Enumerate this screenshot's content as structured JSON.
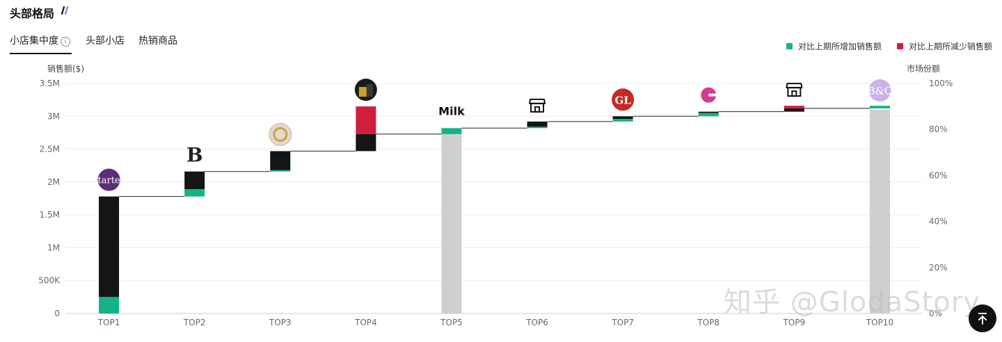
{
  "header": {
    "title": "头部格局"
  },
  "tabs": [
    {
      "label": "小店集中度",
      "active": true
    },
    {
      "label": "头部小店",
      "active": false
    },
    {
      "label": "热销商品",
      "active": false
    }
  ],
  "legend": {
    "increase": {
      "label": "对比上期所增加销售额",
      "color": "#14b386"
    },
    "decrease": {
      "label": "对比上期所减少销售额",
      "color": "#d01f3c"
    }
  },
  "watermark": "知乎 @GlodaStory",
  "chart_data": {
    "type": "bar",
    "subtype": "waterfall-with-share",
    "ylabel": "销售额($)",
    "y2label": "市场份额",
    "ylim": [
      0,
      3500000
    ],
    "y2lim": [
      0,
      100
    ],
    "yticks": [
      "0",
      "500K",
      "1M",
      "1.5M",
      "2M",
      "2.5M",
      "3M",
      "3.5M"
    ],
    "y2ticks": [
      "0%",
      "20%",
      "40%",
      "60%",
      "80%",
      "100%"
    ],
    "grid": true,
    "legend_position": "top-right",
    "categories": [
      "TOP1",
      "TOP2",
      "TOP3",
      "TOP4",
      "TOP5",
      "TOP6",
      "TOP7",
      "TOP8",
      "TOP9",
      "TOP10"
    ],
    "logo_icons": [
      "tarte-logo",
      "b-logo",
      "lion-crest-logo",
      "gold-brand-logo",
      "milk-makeup-logo",
      "store-icon",
      "gl-logo",
      "c-logo",
      "store-icon",
      "bc-logo"
    ],
    "logo_texts": [
      "tarte",
      "B",
      "",
      "",
      "Milk",
      "",
      "GL",
      "",
      "",
      "B&C"
    ],
    "cumulative_start": [
      0,
      1780000,
      2160000,
      2470000,
      2730000,
      2820000,
      2920000,
      3000000,
      3070000,
      3120000
    ],
    "cumulative_end": [
      1780000,
      2160000,
      2470000,
      2730000,
      2820000,
      2920000,
      3000000,
      3070000,
      3120000,
      3140000
    ],
    "series": [
      {
        "name": "对比上期所增加销售额",
        "color": "#14b386",
        "values": [
          250000,
          110000,
          20000,
          0,
          90000,
          20000,
          40000,
          50000,
          0,
          40000
        ]
      },
      {
        "name": "对比上期所减少销售额",
        "color": "#d01f3c",
        "values": [
          0,
          0,
          0,
          420000,
          0,
          0,
          0,
          0,
          40000,
          0
        ]
      }
    ],
    "market_share_bars": [
      {
        "category": "TOP5",
        "share": 80.3
      },
      {
        "category": "TOP10",
        "share": 88.6
      }
    ]
  }
}
